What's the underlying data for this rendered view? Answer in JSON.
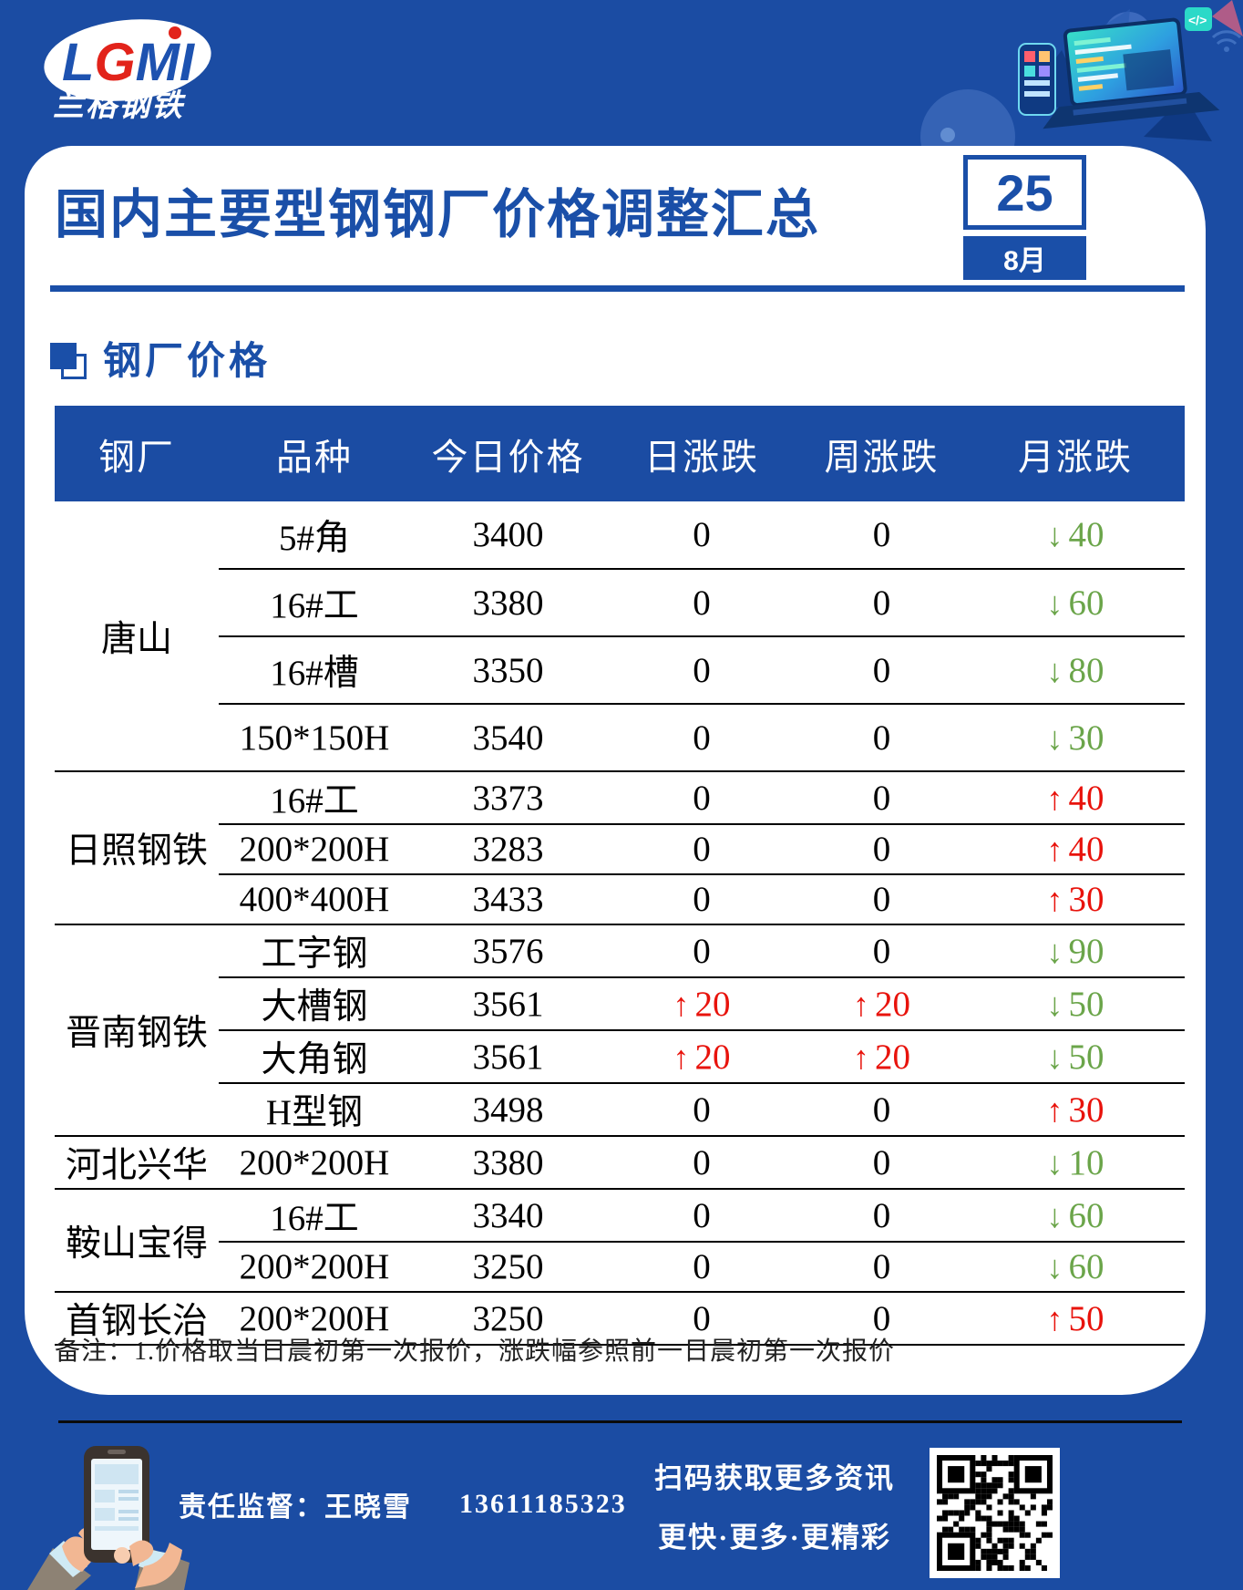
{
  "logo": {
    "brand": "LGMI",
    "company": "兰格钢铁"
  },
  "header": {
    "title": "国内主要型钢钢厂价格调整汇总",
    "date_day": "25",
    "date_month": "8月"
  },
  "section": {
    "title": "钢厂价格"
  },
  "table": {
    "columns": [
      "钢厂",
      "品种",
      "今日价格",
      "日涨跌",
      "周涨跌",
      "月涨跌"
    ],
    "groups": [
      {
        "mill": "唐山",
        "rows": [
          {
            "variety": "5#角",
            "price": "3400",
            "day": {
              "dir": "flat",
              "val": "0"
            },
            "week": {
              "dir": "flat",
              "val": "0"
            },
            "month": {
              "dir": "down",
              "val": "40"
            }
          },
          {
            "variety": "16#工",
            "price": "3380",
            "day": {
              "dir": "flat",
              "val": "0"
            },
            "week": {
              "dir": "flat",
              "val": "0"
            },
            "month": {
              "dir": "down",
              "val": "60"
            }
          },
          {
            "variety": "16#槽",
            "price": "3350",
            "day": {
              "dir": "flat",
              "val": "0"
            },
            "week": {
              "dir": "flat",
              "val": "0"
            },
            "month": {
              "dir": "down",
              "val": "80"
            }
          },
          {
            "variety": "150*150H",
            "price": "3540",
            "day": {
              "dir": "flat",
              "val": "0"
            },
            "week": {
              "dir": "flat",
              "val": "0"
            },
            "month": {
              "dir": "down",
              "val": "30"
            }
          }
        ]
      },
      {
        "mill": "日照钢铁",
        "rows": [
          {
            "variety": "16#工",
            "price": "3373",
            "day": {
              "dir": "flat",
              "val": "0"
            },
            "week": {
              "dir": "flat",
              "val": "0"
            },
            "month": {
              "dir": "up",
              "val": "40"
            }
          },
          {
            "variety": "200*200H",
            "price": "3283",
            "day": {
              "dir": "flat",
              "val": "0"
            },
            "week": {
              "dir": "flat",
              "val": "0"
            },
            "month": {
              "dir": "up",
              "val": "40"
            }
          },
          {
            "variety": "400*400H",
            "price": "3433",
            "day": {
              "dir": "flat",
              "val": "0"
            },
            "week": {
              "dir": "flat",
              "val": "0"
            },
            "month": {
              "dir": "up",
              "val": "30"
            }
          }
        ]
      },
      {
        "mill": "晋南钢铁",
        "rows": [
          {
            "variety": "工字钢",
            "price": "3576",
            "day": {
              "dir": "flat",
              "val": "0"
            },
            "week": {
              "dir": "flat",
              "val": "0"
            },
            "month": {
              "dir": "down",
              "val": "90"
            }
          },
          {
            "variety": "大槽钢",
            "price": "3561",
            "day": {
              "dir": "up",
              "val": "20"
            },
            "week": {
              "dir": "up",
              "val": "20"
            },
            "month": {
              "dir": "down",
              "val": "50"
            }
          },
          {
            "variety": "大角钢",
            "price": "3561",
            "day": {
              "dir": "up",
              "val": "20"
            },
            "week": {
              "dir": "up",
              "val": "20"
            },
            "month": {
              "dir": "down",
              "val": "50"
            }
          },
          {
            "variety": "H型钢",
            "price": "3498",
            "day": {
              "dir": "flat",
              "val": "0"
            },
            "week": {
              "dir": "flat",
              "val": "0"
            },
            "month": {
              "dir": "up",
              "val": "30"
            }
          }
        ]
      },
      {
        "mill": "河北兴华",
        "rows": [
          {
            "variety": "200*200H",
            "price": "3380",
            "day": {
              "dir": "flat",
              "val": "0"
            },
            "week": {
              "dir": "flat",
              "val": "0"
            },
            "month": {
              "dir": "down",
              "val": "10"
            }
          }
        ]
      },
      {
        "mill": "鞍山宝得",
        "rows": [
          {
            "variety": "16#工",
            "price": "3340",
            "day": {
              "dir": "flat",
              "val": "0"
            },
            "week": {
              "dir": "flat",
              "val": "0"
            },
            "month": {
              "dir": "down",
              "val": "60"
            }
          },
          {
            "variety": "200*200H",
            "price": "3250",
            "day": {
              "dir": "flat",
              "val": "0"
            },
            "week": {
              "dir": "flat",
              "val": "0"
            },
            "month": {
              "dir": "down",
              "val": "60"
            }
          }
        ]
      },
      {
        "mill": "首钢长治",
        "rows": [
          {
            "variety": "200*200H",
            "price": "3250",
            "day": {
              "dir": "flat",
              "val": "0"
            },
            "week": {
              "dir": "flat",
              "val": "0"
            },
            "month": {
              "dir": "up",
              "val": "50"
            }
          }
        ]
      }
    ]
  },
  "note": "备注：1.价格取当日晨初第一次报价，涨跌幅参照前一日晨初第一次报价",
  "footer": {
    "supervisor": "责任监督：王晓雪",
    "phone": "13611185323",
    "scan_line1": "扫码获取更多资讯",
    "scan_line2": "更快·更多·更精彩"
  },
  "colors": {
    "accent": "#1A4FA8",
    "background": "#1B4CA3",
    "up": "#E8130C",
    "down": "#6BA54A"
  }
}
